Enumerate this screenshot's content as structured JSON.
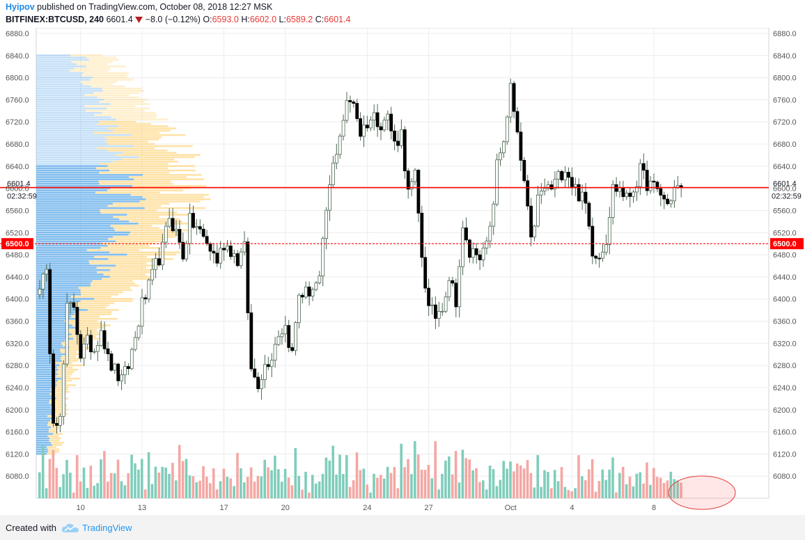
{
  "header": {
    "author": "Hyipov",
    "published_text": " published on TradingView.com, October 08, 2018 12:27 MSK",
    "symbol": "BITFINEX:BTCUSD, 240",
    "last": "6601.4",
    "change": "−8.0 (−0.12%)",
    "o_label": "O:",
    "o_value": "6593.0",
    "h_label": "H:",
    "h_value": "6602.0",
    "l_label": "L:",
    "l_value": "6589.2",
    "c_label": "C:",
    "c_value": "6601.4"
  },
  "footer": {
    "created_with": "Created with",
    "brand": "TradingView"
  },
  "chart_data": {
    "type": "candlestick",
    "symbol": "BITFINEX:BTCUSD",
    "interval": "240",
    "ylim": [
      6040,
      6890
    ],
    "y_ticks": [
      6080,
      6120,
      6160,
      6200,
      6240,
      6280,
      6320,
      6360,
      6400,
      6440,
      6480,
      6520,
      6560,
      6600,
      6640,
      6680,
      6720,
      6760,
      6800,
      6840,
      6880
    ],
    "y_tick_labels": [
      "6080.0",
      "6120.0",
      "6160.0",
      "6200.0",
      "6240.0",
      "6280.0",
      "6320.0",
      "6360.0",
      "6400.0",
      "6440.0",
      "6480.0",
      "6520.0",
      "6560.0",
      "6600.0",
      "6640.0",
      "6680.0",
      "6720.0",
      "6760.0",
      "6800.0",
      "6840.0",
      "6880.0"
    ],
    "x_ticks": [
      {
        "label": "10",
        "bar": 12
      },
      {
        "label": "13",
        "bar": 30
      },
      {
        "label": "17",
        "bar": 54
      },
      {
        "label": "20",
        "bar": 72
      },
      {
        "label": "24",
        "bar": 96
      },
      {
        "label": "27",
        "bar": 114
      },
      {
        "label": "Oct",
        "bar": 138
      },
      {
        "label": "4",
        "bar": 156
      },
      {
        "label": "8",
        "bar": 180
      }
    ],
    "current_price": {
      "value": 6601.4,
      "label": "6601.4",
      "countdown": "02:32:59",
      "color": "#ff0000"
    },
    "alert_line": {
      "value": 6500.0,
      "label": "6500.0",
      "color": "#ff0000"
    },
    "up_color": "#ffffff",
    "down_color": "#000000",
    "wick_color": "#4a6650",
    "volume_up_color": "#7fcdbb",
    "volume_down_color": "#f4a7a3",
    "vp_up_color": "#57a7e8",
    "vp_down_color": "#ffd680",
    "vp_poc_price": 6600,
    "waypoints": [
      [
        0,
        6430
      ],
      [
        2,
        6440
      ],
      [
        4,
        6190
      ],
      [
        6,
        6180
      ],
      [
        8,
        6380
      ],
      [
        10,
        6390
      ],
      [
        12,
        6300
      ],
      [
        14,
        6320
      ],
      [
        16,
        6310
      ],
      [
        18,
        6350
      ],
      [
        20,
        6290
      ],
      [
        22,
        6270
      ],
      [
        24,
        6250
      ],
      [
        26,
        6280
      ],
      [
        28,
        6330
      ],
      [
        30,
        6390
      ],
      [
        32,
        6420
      ],
      [
        34,
        6460
      ],
      [
        36,
        6490
      ],
      [
        38,
        6550
      ],
      [
        40,
        6520
      ],
      [
        42,
        6480
      ],
      [
        44,
        6540
      ],
      [
        46,
        6530
      ],
      [
        48,
        6510
      ],
      [
        50,
        6490
      ],
      [
        52,
        6470
      ],
      [
        54,
        6500
      ],
      [
        56,
        6490
      ],
      [
        58,
        6470
      ],
      [
        60,
        6490
      ],
      [
        62,
        6270
      ],
      [
        64,
        6250
      ],
      [
        66,
        6280
      ],
      [
        68,
        6300
      ],
      [
        70,
        6340
      ],
      [
        72,
        6350
      ],
      [
        74,
        6300
      ],
      [
        76,
        6410
      ],
      [
        78,
        6410
      ],
      [
        80,
        6420
      ],
      [
        82,
        6430
      ],
      [
        84,
        6560
      ],
      [
        86,
        6640
      ],
      [
        88,
        6700
      ],
      [
        90,
        6750
      ],
      [
        92,
        6760
      ],
      [
        94,
        6700
      ],
      [
        96,
        6720
      ],
      [
        98,
        6730
      ],
      [
        100,
        6720
      ],
      [
        102,
        6730
      ],
      [
        104,
        6680
      ],
      [
        106,
        6700
      ],
      [
        108,
        6590
      ],
      [
        110,
        6620
      ],
      [
        112,
        6480
      ],
      [
        114,
        6380
      ],
      [
        116,
        6370
      ],
      [
        118,
        6390
      ],
      [
        120,
        6440
      ],
      [
        122,
        6400
      ],
      [
        124,
        6520
      ],
      [
        126,
        6480
      ],
      [
        128,
        6490
      ],
      [
        130,
        6480
      ],
      [
        132,
        6520
      ],
      [
        134,
        6640
      ],
      [
        136,
        6690
      ],
      [
        138,
        6780
      ],
      [
        140,
        6690
      ],
      [
        142,
        6610
      ],
      [
        144,
        6500
      ],
      [
        146,
        6580
      ],
      [
        148,
        6600
      ],
      [
        150,
        6600
      ],
      [
        152,
        6620
      ],
      [
        154,
        6640
      ],
      [
        156,
        6610
      ],
      [
        158,
        6590
      ],
      [
        160,
        6570
      ],
      [
        162,
        6490
      ],
      [
        164,
        6480
      ],
      [
        166,
        6510
      ],
      [
        168,
        6600
      ],
      [
        170,
        6600
      ],
      [
        172,
        6580
      ],
      [
        174,
        6600
      ],
      [
        176,
        6630
      ],
      [
        178,
        6610
      ],
      [
        180,
        6600
      ],
      [
        182,
        6590
      ],
      [
        184,
        6570
      ],
      [
        186,
        6600
      ],
      [
        188,
        6601.4
      ]
    ],
    "bar_count": 189,
    "volume_max_ratio": 0.25
  }
}
